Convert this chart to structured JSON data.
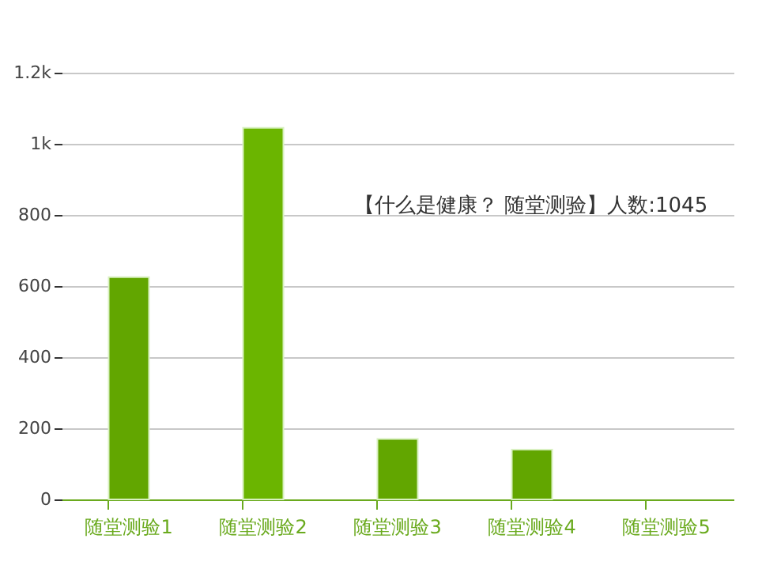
{
  "chart_data": {
    "type": "bar",
    "categories": [
      "随堂测验1",
      "随堂测验2",
      "随堂测验3",
      "随堂测验4",
      "随堂测验5"
    ],
    "values": [
      625,
      1045,
      170,
      140,
      null
    ],
    "colors": [
      "#62a600",
      "#6bb500",
      "#62a600",
      "#62a600",
      "#62a600"
    ],
    "ylim": [
      0,
      1200
    ],
    "yticks": [
      0,
      200,
      400,
      600,
      800,
      {
        "value": 1000,
        "label": "1k"
      },
      {
        "value": 1200,
        "label": "1.2k"
      }
    ],
    "grid": "y",
    "annotations": [
      "【什么是健康？ 随堂测验】人数:1045"
    ]
  }
}
